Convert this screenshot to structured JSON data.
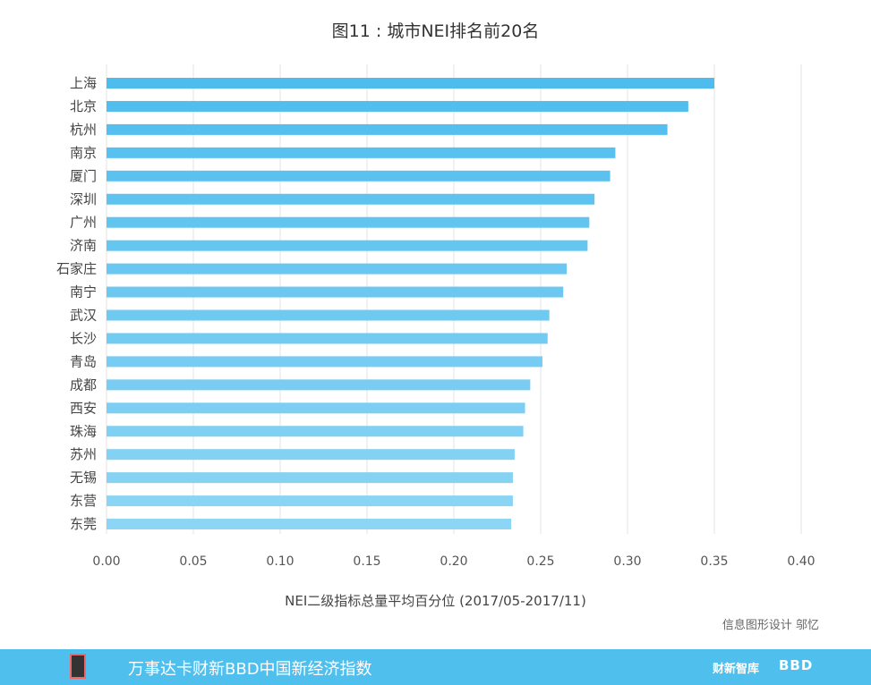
{
  "chart_data": {
    "type": "bar",
    "orientation": "horizontal",
    "title": "图11 : 城市NEI排名前20名",
    "xlabel": "NEI二级指标总量平均百分位 (2017/05-2017/11)",
    "ylabel": "",
    "xlim": [
      0,
      0.4
    ],
    "xticks": [
      "0.00",
      "0.05",
      "0.10",
      "0.15",
      "0.20",
      "0.25",
      "0.30",
      "0.35",
      "0.40"
    ],
    "grid": true,
    "categories": [
      "上海",
      "北京",
      "杭州",
      "南京",
      "厦门",
      "深圳",
      "广州",
      "济南",
      "石家庄",
      "南宁",
      "武汉",
      "长沙",
      "青岛",
      "成都",
      "西安",
      "珠海",
      "苏州",
      "无锡",
      "东营",
      "东莞"
    ],
    "values": [
      0.35,
      0.335,
      0.323,
      0.293,
      0.29,
      0.281,
      0.278,
      0.277,
      0.265,
      0.263,
      0.255,
      0.254,
      0.251,
      0.244,
      0.241,
      0.24,
      0.235,
      0.234,
      0.234,
      0.233
    ],
    "colors": {
      "bar_top": "#4ebdee",
      "bar_bottom": "#8dd5f4",
      "grid": "#e3e3e3"
    }
  },
  "credit": "信息图形设计 邬忆",
  "footer": {
    "title": "万事达卡财新BBD中国新经济指数",
    "brand1": "财新智库",
    "brand2": "BBD",
    "background": "#4fbfee"
  }
}
